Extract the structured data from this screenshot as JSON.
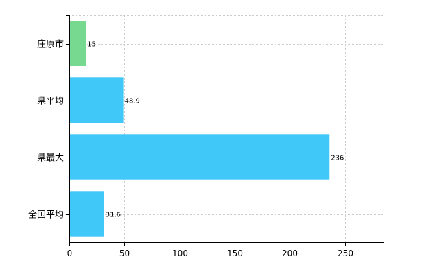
{
  "chart_data": {
    "type": "bar",
    "orientation": "horizontal",
    "categories": [
      "庄原市",
      "県平均",
      "県最大",
      "全国平均"
    ],
    "values": [
      15,
      48.9,
      236,
      31.6
    ],
    "data_labels": [
      "15",
      "48.9",
      "236",
      "31.6"
    ],
    "bar_colors": [
      "#77d98f",
      "#40c8f8",
      "#40c8f8",
      "#40c8f8"
    ],
    "xlim": [
      0,
      285
    ],
    "xticks": [
      0,
      50,
      100,
      150,
      200,
      250
    ],
    "xtick_labels": [
      "0",
      "50",
      "100",
      "150",
      "200",
      "250"
    ],
    "grid": true,
    "title": "",
    "xlabel": "",
    "ylabel": ""
  }
}
